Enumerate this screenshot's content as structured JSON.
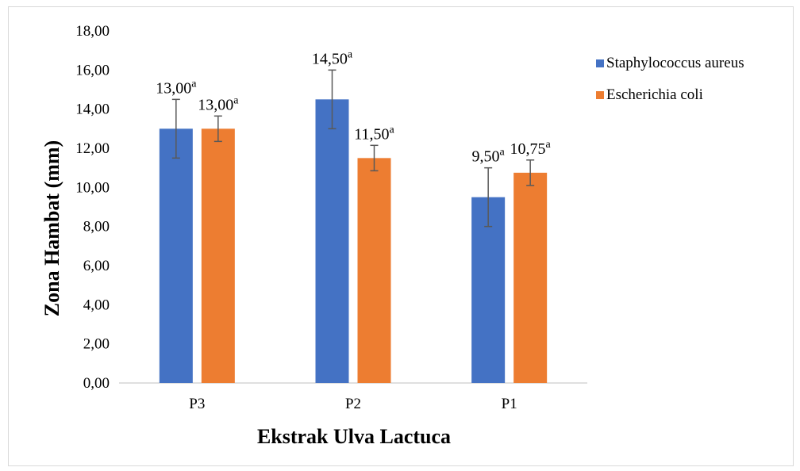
{
  "chart_data": {
    "type": "bar",
    "categories": [
      "P3",
      "P2",
      "P1"
    ],
    "series": [
      {
        "name": "Staphylococcus aureus",
        "color": "#4472C4",
        "values": [
          13.0,
          14.5,
          9.5
        ],
        "errors": [
          1.5,
          1.5,
          1.5
        ],
        "labels": [
          "13,00",
          "14,50",
          "9,50"
        ],
        "superscripts": [
          "a",
          "a",
          "a"
        ]
      },
      {
        "name": "Escherichia coli",
        "color": "#ED7D31",
        "values": [
          13.0,
          11.5,
          10.75
        ],
        "errors": [
          0.65,
          0.65,
          0.65
        ],
        "labels": [
          "13,00",
          "11,50",
          "10,75"
        ],
        "superscripts": [
          "a",
          "a",
          "a"
        ]
      }
    ],
    "ylim": [
      0,
      18
    ],
    "ytick_step": 2,
    "ytick_labels": [
      "0,00",
      "2,00",
      "4,00",
      "6,00",
      "8,00",
      "10,00",
      "12,00",
      "14,00",
      "16,00",
      "18,00"
    ],
    "xlabel": "Ekstrak Ulva Lactuca",
    "ylabel": "Zona Hambat (mm)",
    "legend_position": "right",
    "grid": false
  }
}
